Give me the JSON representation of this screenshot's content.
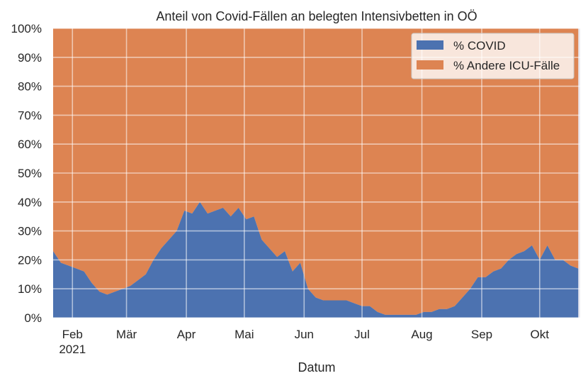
{
  "chart_data": {
    "type": "area",
    "stacked": true,
    "title": "Anteil von Covid-Fällen an belegten Intensivbetten in OÖ",
    "xlabel": "Datum",
    "ylabel": "",
    "ylim": [
      0,
      100
    ],
    "xlim": [
      "2021-01-22",
      "2021-10-22"
    ],
    "yticks": [
      0,
      10,
      20,
      30,
      40,
      50,
      60,
      70,
      80,
      90,
      100
    ],
    "ytick_labels": [
      "0%",
      "10%",
      "20%",
      "30%",
      "40%",
      "50%",
      "60%",
      "70%",
      "80%",
      "90%",
      "100%"
    ],
    "xticks": [
      {
        "date": "2021-02-01",
        "label": "Feb",
        "sublabel": "2021"
      },
      {
        "date": "2021-03-01",
        "label": "Mär"
      },
      {
        "date": "2021-04-01",
        "label": "Apr"
      },
      {
        "date": "2021-05-01",
        "label": "Mai"
      },
      {
        "date": "2021-06-01",
        "label": "Jun"
      },
      {
        "date": "2021-07-01",
        "label": "Jul"
      },
      {
        "date": "2021-08-01",
        "label": "Aug"
      },
      {
        "date": "2021-09-01",
        "label": "Sep"
      },
      {
        "date": "2021-10-01",
        "label": "Okt"
      }
    ],
    "grid": true,
    "legend_position": "top-right",
    "colors": {
      "covid": "#4c72b0",
      "other": "#dd8452",
      "background": "#eaeaf2"
    },
    "x": [
      "2021-01-22",
      "2021-01-26",
      "2021-01-30",
      "2021-02-03",
      "2021-02-07",
      "2021-02-11",
      "2021-02-15",
      "2021-02-19",
      "2021-02-23",
      "2021-02-27",
      "2021-03-03",
      "2021-03-07",
      "2021-03-11",
      "2021-03-15",
      "2021-03-19",
      "2021-03-23",
      "2021-03-27",
      "2021-03-31",
      "2021-04-04",
      "2021-04-08",
      "2021-04-12",
      "2021-04-16",
      "2021-04-20",
      "2021-04-24",
      "2021-04-28",
      "2021-05-02",
      "2021-05-06",
      "2021-05-10",
      "2021-05-14",
      "2021-05-18",
      "2021-05-22",
      "2021-05-26",
      "2021-05-30",
      "2021-06-03",
      "2021-06-07",
      "2021-06-11",
      "2021-06-15",
      "2021-06-19",
      "2021-06-23",
      "2021-06-27",
      "2021-07-01",
      "2021-07-05",
      "2021-07-09",
      "2021-07-13",
      "2021-07-17",
      "2021-07-21",
      "2021-07-25",
      "2021-07-29",
      "2021-08-02",
      "2021-08-06",
      "2021-08-10",
      "2021-08-14",
      "2021-08-18",
      "2021-08-22",
      "2021-08-26",
      "2021-08-30",
      "2021-09-03",
      "2021-09-07",
      "2021-09-11",
      "2021-09-15",
      "2021-09-19",
      "2021-09-23",
      "2021-09-27",
      "2021-10-01",
      "2021-10-05",
      "2021-10-09",
      "2021-10-13",
      "2021-10-17",
      "2021-10-21"
    ],
    "series": [
      {
        "name": "% COVID",
        "values": [
          23,
          19,
          18,
          17,
          16,
          12,
          9,
          8,
          9,
          10,
          11,
          13,
          15,
          20,
          24,
          27,
          30,
          37,
          36,
          40,
          36,
          37,
          38,
          35,
          38,
          34,
          35,
          27,
          24,
          21,
          23,
          16,
          19,
          10,
          7,
          6,
          6,
          6,
          6,
          5,
          4,
          4,
          2,
          1,
          1,
          1,
          1,
          1,
          2,
          2,
          3,
          3,
          4,
          7,
          10,
          14,
          14,
          16,
          17,
          20,
          22,
          23,
          25,
          20,
          25,
          20,
          20,
          18,
          17
        ]
      },
      {
        "name": "% Andere ICU-Fälle",
        "values": [
          77,
          81,
          82,
          83,
          84,
          88,
          91,
          92,
          91,
          90,
          89,
          87,
          85,
          80,
          76,
          73,
          70,
          63,
          64,
          60,
          64,
          63,
          62,
          65,
          62,
          66,
          65,
          73,
          76,
          79,
          77,
          84,
          81,
          90,
          93,
          94,
          94,
          94,
          94,
          95,
          96,
          96,
          98,
          99,
          99,
          99,
          99,
          99,
          98,
          98,
          97,
          97,
          96,
          93,
          90,
          86,
          86,
          84,
          83,
          80,
          78,
          77,
          75,
          80,
          75,
          80,
          80,
          82,
          83
        ]
      }
    ]
  }
}
